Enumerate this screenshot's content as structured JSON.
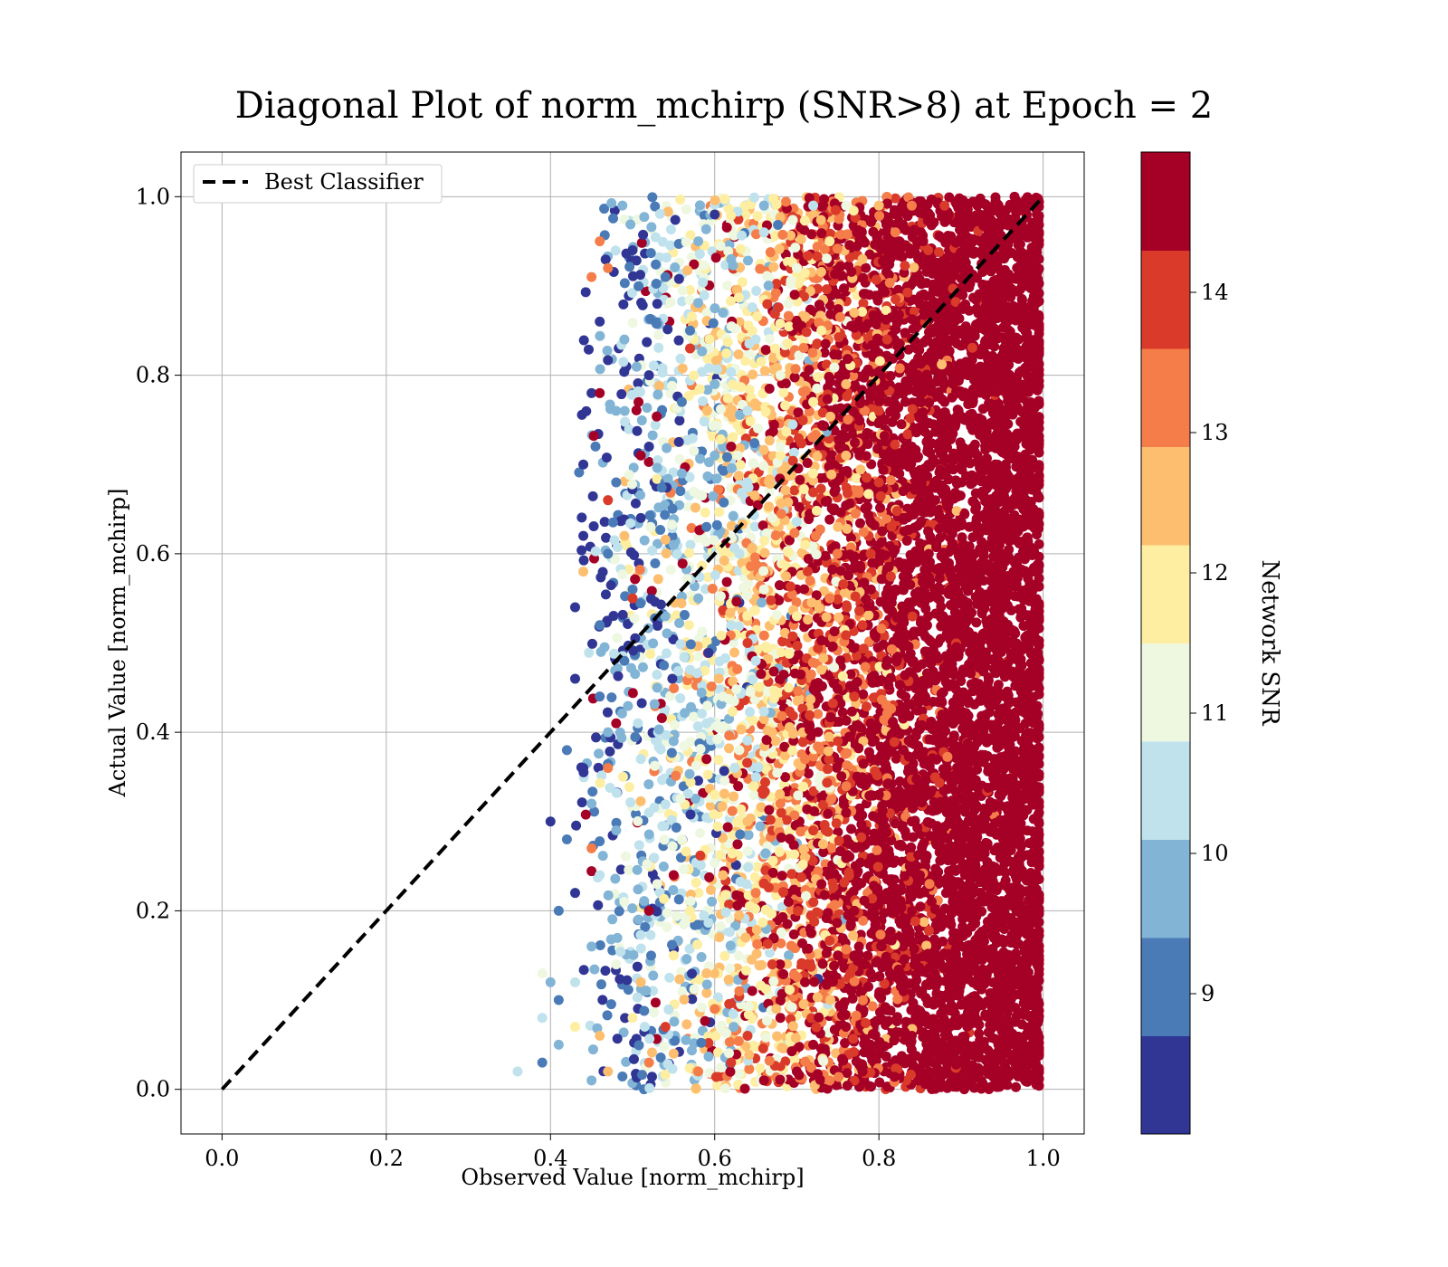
{
  "chart_data": {
    "type": "scatter",
    "title": "Diagonal Plot of norm_mchirp (SNR>8) at Epoch = 2",
    "xlabel": "Observed Value [norm_mchirp]",
    "ylabel": "Actual Value [norm_mchirp]",
    "xlim": [
      -0.05,
      1.05
    ],
    "ylim": [
      -0.05,
      1.05
    ],
    "xticks": [
      0.0,
      0.2,
      0.4,
      0.6,
      0.8,
      1.0
    ],
    "yticks": [
      0.0,
      0.2,
      0.4,
      0.6,
      0.8,
      1.0
    ],
    "xtick_labels": [
      "0.0",
      "0.2",
      "0.4",
      "0.6",
      "0.8",
      "1.0"
    ],
    "ytick_labels": [
      "0.0",
      "0.2",
      "0.4",
      "0.6",
      "0.8",
      "1.0"
    ],
    "grid": true,
    "legend": {
      "position": "upper-left",
      "entries": [
        "Best Classifier"
      ]
    },
    "reference_line": {
      "name": "Best Classifier",
      "style": "dashed",
      "color": "#000000",
      "x": [
        0.0,
        1.0
      ],
      "y": [
        0.0,
        1.0
      ]
    },
    "colorbar": {
      "label": "Network SNR",
      "range": [
        8.0,
        15.0
      ],
      "ticks": [
        9,
        10,
        11,
        12,
        13,
        14
      ],
      "tick_labels": [
        "9",
        "10",
        "11",
        "12",
        "13",
        "14"
      ],
      "levels": [
        {
          "from": 8.0,
          "to": 8.7,
          "color": "#313695"
        },
        {
          "from": 8.7,
          "to": 9.4,
          "color": "#4a7bb7"
        },
        {
          "from": 9.4,
          "to": 10.1,
          "color": "#82b4d6"
        },
        {
          "from": 10.1,
          "to": 10.8,
          "color": "#bfe2ed"
        },
        {
          "from": 10.8,
          "to": 11.5,
          "color": "#eef7e0"
        },
        {
          "from": 11.5,
          "to": 12.2,
          "color": "#feeea2"
        },
        {
          "from": 12.2,
          "to": 12.9,
          "color": "#fdbe6f"
        },
        {
          "from": 12.9,
          "to": 13.6,
          "color": "#f57d4a"
        },
        {
          "from": 13.6,
          "to": 14.3,
          "color": "#d93a2a"
        },
        {
          "from": 14.3,
          "to": 15.0,
          "color": "#a50026"
        }
      ]
    },
    "scatter_points": [
      [
        0.45,
        0.01,
        9.5
      ],
      [
        0.47,
        0.02,
        12.5
      ],
      [
        0.52,
        0.03,
        13.0
      ],
      [
        0.55,
        0.04,
        12.2
      ],
      [
        0.58,
        0.02,
        13.4
      ],
      [
        0.62,
        0.03,
        14.0
      ],
      [
        0.66,
        0.01,
        14.6
      ],
      [
        0.7,
        0.02,
        14.6
      ],
      [
        0.74,
        0.01,
        13.2
      ],
      [
        0.78,
        0.02,
        14.6
      ],
      [
        0.36,
        0.02,
        10.6
      ],
      [
        0.39,
        0.03,
        9.2
      ],
      [
        0.41,
        0.05,
        9.8
      ],
      [
        0.43,
        0.07,
        11.8
      ],
      [
        0.46,
        0.06,
        12.8
      ],
      [
        0.5,
        0.08,
        12.0
      ],
      [
        0.54,
        0.07,
        13.6
      ],
      [
        0.6,
        0.09,
        13.2
      ],
      [
        0.64,
        0.06,
        14.2
      ],
      [
        0.68,
        0.08,
        14.6
      ],
      [
        0.72,
        0.05,
        14.6
      ],
      [
        0.76,
        0.07,
        14.6
      ],
      [
        0.8,
        0.04,
        14.6
      ],
      [
        0.84,
        0.06,
        14.6
      ],
      [
        0.88,
        0.09,
        14.6
      ],
      [
        0.92,
        0.1,
        14.6
      ],
      [
        0.95,
        0.12,
        14.6
      ],
      [
        0.98,
        0.14,
        14.6
      ],
      [
        0.39,
        0.13,
        11.2
      ],
      [
        0.41,
        0.1,
        9.0
      ],
      [
        0.43,
        0.12,
        10.2
      ],
      [
        0.45,
        0.16,
        9.6
      ],
      [
        0.48,
        0.14,
        11.0
      ],
      [
        0.51,
        0.12,
        12.2
      ],
      [
        0.55,
        0.15,
        11.6
      ],
      [
        0.59,
        0.13,
        12.6
      ],
      [
        0.63,
        0.11,
        13.0
      ],
      [
        0.67,
        0.14,
        14.0
      ],
      [
        0.71,
        0.12,
        14.6
      ],
      [
        0.75,
        0.15,
        14.6
      ],
      [
        0.79,
        0.13,
        14.6
      ],
      [
        0.83,
        0.11,
        14.6
      ],
      [
        0.87,
        0.16,
        14.6
      ],
      [
        0.91,
        0.14,
        14.6
      ],
      [
        0.94,
        0.18,
        14.6
      ],
      [
        0.97,
        0.2,
        14.6
      ],
      [
        0.41,
        0.2,
        9.0
      ],
      [
        0.43,
        0.22,
        8.4
      ],
      [
        0.46,
        0.24,
        10.4
      ],
      [
        0.49,
        0.21,
        11.4
      ],
      [
        0.53,
        0.23,
        10.8
      ],
      [
        0.57,
        0.2,
        11.8
      ],
      [
        0.61,
        0.24,
        12.4
      ],
      [
        0.65,
        0.22,
        13.2
      ],
      [
        0.69,
        0.21,
        14.4
      ],
      [
        0.73,
        0.23,
        14.6
      ],
      [
        0.77,
        0.2,
        14.6
      ],
      [
        0.81,
        0.22,
        14.6
      ],
      [
        0.85,
        0.24,
        14.6
      ],
      [
        0.89,
        0.21,
        14.6
      ],
      [
        0.93,
        0.23,
        14.6
      ],
      [
        0.97,
        0.26,
        14.6
      ],
      [
        0.4,
        0.3,
        8.4
      ],
      [
        0.42,
        0.28,
        9.2
      ],
      [
        0.45,
        0.32,
        10.0
      ],
      [
        0.48,
        0.29,
        9.4
      ],
      [
        0.52,
        0.31,
        10.6
      ],
      [
        0.56,
        0.28,
        11.2
      ],
      [
        0.6,
        0.33,
        11.8
      ],
      [
        0.64,
        0.3,
        12.6
      ],
      [
        0.68,
        0.32,
        13.4
      ],
      [
        0.72,
        0.29,
        14.2
      ],
      [
        0.76,
        0.31,
        14.6
      ],
      [
        0.8,
        0.33,
        14.6
      ],
      [
        0.84,
        0.3,
        14.6
      ],
      [
        0.88,
        0.32,
        14.6
      ],
      [
        0.92,
        0.29,
        14.6
      ],
      [
        0.96,
        0.31,
        14.6
      ],
      [
        0.99,
        0.34,
        14.6
      ],
      [
        0.42,
        0.38,
        9.0
      ],
      [
        0.44,
        0.36,
        8.6
      ],
      [
        0.47,
        0.4,
        9.8
      ],
      [
        0.51,
        0.37,
        10.2
      ],
      [
        0.55,
        0.39,
        9.6
      ],
      [
        0.59,
        0.41,
        10.6
      ],
      [
        0.63,
        0.38,
        11.4
      ],
      [
        0.67,
        0.4,
        12.2
      ],
      [
        0.71,
        0.37,
        13.0
      ],
      [
        0.75,
        0.39,
        14.0
      ],
      [
        0.79,
        0.41,
        14.6
      ],
      [
        0.83,
        0.38,
        14.6
      ],
      [
        0.87,
        0.4,
        14.6
      ],
      [
        0.91,
        0.37,
        14.6
      ],
      [
        0.95,
        0.39,
        14.6
      ],
      [
        0.98,
        0.42,
        14.6
      ],
      [
        0.43,
        0.46,
        8.4
      ],
      [
        0.46,
        0.44,
        9.2
      ],
      [
        0.49,
        0.48,
        8.8
      ],
      [
        0.53,
        0.45,
        9.6
      ],
      [
        0.57,
        0.47,
        10.4
      ],
      [
        0.61,
        0.44,
        11.0
      ],
      [
        0.65,
        0.48,
        10.6
      ],
      [
        0.69,
        0.45,
        11.8
      ],
      [
        0.73,
        0.47,
        12.8
      ],
      [
        0.77,
        0.44,
        13.8
      ],
      [
        0.81,
        0.48,
        14.6
      ],
      [
        0.85,
        0.45,
        14.6
      ],
      [
        0.89,
        0.47,
        14.6
      ],
      [
        0.93,
        0.44,
        14.6
      ],
      [
        0.97,
        0.48,
        14.6
      ],
      [
        0.43,
        0.54,
        8.4
      ],
      [
        0.46,
        0.52,
        9.0
      ],
      [
        0.5,
        0.56,
        8.8
      ],
      [
        0.54,
        0.53,
        9.4
      ],
      [
        0.58,
        0.55,
        9.8
      ],
      [
        0.62,
        0.52,
        10.6
      ],
      [
        0.66,
        0.56,
        11.2
      ],
      [
        0.7,
        0.53,
        12.0
      ],
      [
        0.74,
        0.55,
        13.0
      ],
      [
        0.78,
        0.52,
        14.0
      ],
      [
        0.82,
        0.56,
        14.6
      ],
      [
        0.86,
        0.53,
        14.6
      ],
      [
        0.9,
        0.55,
        14.6
      ],
      [
        0.94,
        0.52,
        14.6
      ],
      [
        0.98,
        0.56,
        14.6
      ],
      [
        0.44,
        0.62,
        8.4
      ],
      [
        0.47,
        0.6,
        9.2
      ],
      [
        0.51,
        0.64,
        8.6
      ],
      [
        0.55,
        0.61,
        9.6
      ],
      [
        0.59,
        0.63,
        9.0
      ],
      [
        0.63,
        0.6,
        10.2
      ],
      [
        0.67,
        0.64,
        11.0
      ],
      [
        0.71,
        0.61,
        11.8
      ],
      [
        0.75,
        0.63,
        12.6
      ],
      [
        0.79,
        0.6,
        13.6
      ],
      [
        0.83,
        0.64,
        14.6
      ],
      [
        0.87,
        0.61,
        14.6
      ],
      [
        0.91,
        0.63,
        14.6
      ],
      [
        0.95,
        0.6,
        14.6
      ],
      [
        0.99,
        0.64,
        14.6
      ],
      [
        0.44,
        0.7,
        8.4
      ],
      [
        0.48,
        0.68,
        9.0
      ],
      [
        0.52,
        0.72,
        8.6
      ],
      [
        0.56,
        0.69,
        9.4
      ],
      [
        0.6,
        0.71,
        9.8
      ],
      [
        0.64,
        0.68,
        10.4
      ],
      [
        0.68,
        0.72,
        11.2
      ],
      [
        0.72,
        0.69,
        12.0
      ],
      [
        0.76,
        0.71,
        12.8
      ],
      [
        0.8,
        0.68,
        14.0
      ],
      [
        0.84,
        0.72,
        14.6
      ],
      [
        0.88,
        0.69,
        14.6
      ],
      [
        0.92,
        0.71,
        14.6
      ],
      [
        0.96,
        0.68,
        14.6
      ],
      [
        0.45,
        0.78,
        8.4
      ],
      [
        0.48,
        0.76,
        9.6
      ],
      [
        0.52,
        0.8,
        8.6
      ],
      [
        0.56,
        0.77,
        9.2
      ],
      [
        0.6,
        0.79,
        9.8
      ],
      [
        0.64,
        0.76,
        10.4
      ],
      [
        0.68,
        0.8,
        11.0
      ],
      [
        0.72,
        0.77,
        11.8
      ],
      [
        0.76,
        0.79,
        12.6
      ],
      [
        0.8,
        0.76,
        13.8
      ],
      [
        0.84,
        0.8,
        14.6
      ],
      [
        0.88,
        0.77,
        14.6
      ],
      [
        0.92,
        0.79,
        14.6
      ],
      [
        0.96,
        0.76,
        14.6
      ],
      [
        0.99,
        0.8,
        14.6
      ],
      [
        0.46,
        0.86,
        8.6
      ],
      [
        0.49,
        0.84,
        9.4
      ],
      [
        0.53,
        0.88,
        8.4
      ],
      [
        0.57,
        0.85,
        9.0
      ],
      [
        0.61,
        0.87,
        9.6
      ],
      [
        0.65,
        0.84,
        10.2
      ],
      [
        0.69,
        0.88,
        10.8
      ],
      [
        0.73,
        0.85,
        11.6
      ],
      [
        0.77,
        0.87,
        12.4
      ],
      [
        0.81,
        0.84,
        13.6
      ],
      [
        0.85,
        0.88,
        14.6
      ],
      [
        0.89,
        0.85,
        14.6
      ],
      [
        0.93,
        0.87,
        14.6
      ],
      [
        0.97,
        0.84,
        14.6
      ],
      [
        0.47,
        0.92,
        13.2
      ],
      [
        0.5,
        0.94,
        8.4
      ],
      [
        0.54,
        0.91,
        8.8
      ],
      [
        0.58,
        0.95,
        9.4
      ],
      [
        0.62,
        0.93,
        9.8
      ],
      [
        0.66,
        0.96,
        10.4
      ],
      [
        0.7,
        0.92,
        11.0
      ],
      [
        0.74,
        0.95,
        11.8
      ],
      [
        0.78,
        0.93,
        12.6
      ],
      [
        0.82,
        0.96,
        13.4
      ],
      [
        0.86,
        0.94,
        14.2
      ],
      [
        0.9,
        0.97,
        14.6
      ],
      [
        0.94,
        0.95,
        14.6
      ],
      [
        0.98,
        0.98,
        14.6
      ],
      [
        0.6,
        0.98,
        8.6
      ],
      [
        0.66,
        0.99,
        9.6
      ],
      [
        0.72,
        0.99,
        10.6
      ],
      [
        0.76,
        0.99,
        11.4
      ],
      [
        0.8,
        0.99,
        12.2
      ],
      [
        0.84,
        0.99,
        13.0
      ],
      [
        0.88,
        0.99,
        13.8
      ],
      [
        0.92,
        0.99,
        14.6
      ],
      [
        0.46,
        0.78,
        14.6
      ],
      [
        0.47,
        0.66,
        14.2
      ],
      [
        0.45,
        0.27,
        13.4
      ],
      [
        0.48,
        0.41,
        14.6
      ],
      [
        0.5,
        0.55,
        14.0
      ],
      [
        0.47,
        0.36,
        13.0
      ],
      [
        0.52,
        0.2,
        14.6
      ],
      [
        0.44,
        0.58,
        12.4
      ],
      [
        0.51,
        0.71,
        14.6
      ],
      [
        0.49,
        0.62,
        12.8
      ],
      [
        0.57,
        0.83,
        14.0
      ],
      [
        0.59,
        0.37,
        14.6
      ],
      [
        0.62,
        0.72,
        14.6
      ],
      [
        0.64,
        0.5,
        14.0
      ],
      [
        0.55,
        0.24,
        14.6
      ],
      [
        0.46,
        0.95,
        13.2
      ],
      [
        0.45,
        0.91,
        13.4
      ],
      [
        0.4,
        0.12,
        9.6
      ],
      [
        0.39,
        0.08,
        10.2
      ]
    ]
  }
}
